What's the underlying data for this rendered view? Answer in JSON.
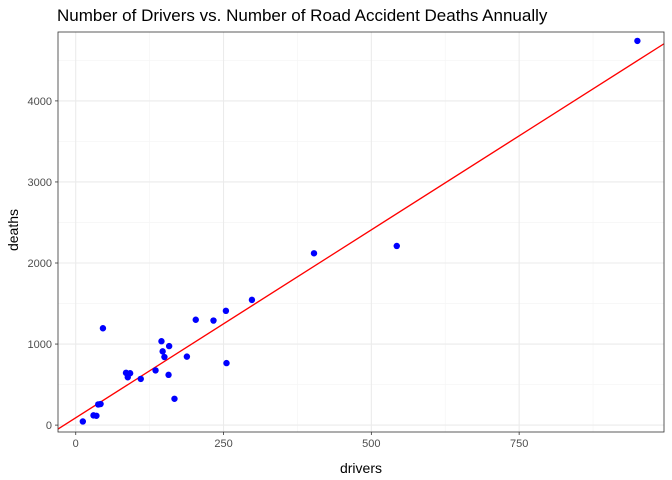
{
  "chart_data": {
    "type": "scatter",
    "title": "Number of Drivers vs. Number of Road Accident Deaths Annually",
    "xlabel": "drivers",
    "ylabel": "deaths",
    "xlim": [
      -30,
      995
    ],
    "ylim": [
      -85,
      4850
    ],
    "x_ticks": [
      0,
      250,
      500,
      750
    ],
    "y_ticks": [
      0,
      1000,
      2000,
      3000,
      4000
    ],
    "grid": true,
    "points": [
      {
        "x": 12,
        "y": 45
      },
      {
        "x": 30,
        "y": 120
      },
      {
        "x": 35,
        "y": 115
      },
      {
        "x": 38,
        "y": 255
      },
      {
        "x": 42,
        "y": 260
      },
      {
        "x": 46,
        "y": 1195
      },
      {
        "x": 85,
        "y": 645
      },
      {
        "x": 88,
        "y": 590
      },
      {
        "x": 92,
        "y": 640
      },
      {
        "x": 110,
        "y": 570
      },
      {
        "x": 135,
        "y": 675
      },
      {
        "x": 145,
        "y": 1035
      },
      {
        "x": 147,
        "y": 910
      },
      {
        "x": 150,
        "y": 840
      },
      {
        "x": 157,
        "y": 620
      },
      {
        "x": 158,
        "y": 975
      },
      {
        "x": 167,
        "y": 325
      },
      {
        "x": 188,
        "y": 845
      },
      {
        "x": 203,
        "y": 1300
      },
      {
        "x": 233,
        "y": 1290
      },
      {
        "x": 254,
        "y": 1410
      },
      {
        "x": 255,
        "y": 765
      },
      {
        "x": 298,
        "y": 1545
      },
      {
        "x": 403,
        "y": 2120
      },
      {
        "x": 543,
        "y": 2210
      },
      {
        "x": 950,
        "y": 4740
      }
    ],
    "trend_line": {
      "x": [
        -30,
        995
      ],
      "y": [
        -49,
        4705
      ]
    },
    "colors": {
      "points": "#0000ff",
      "trend_line": "#ff0000",
      "grid_major": "#ebebeb",
      "grid_minor": "#f5f5f5",
      "panel_border": "#333333",
      "tick_text": "#4d4d4d"
    }
  }
}
